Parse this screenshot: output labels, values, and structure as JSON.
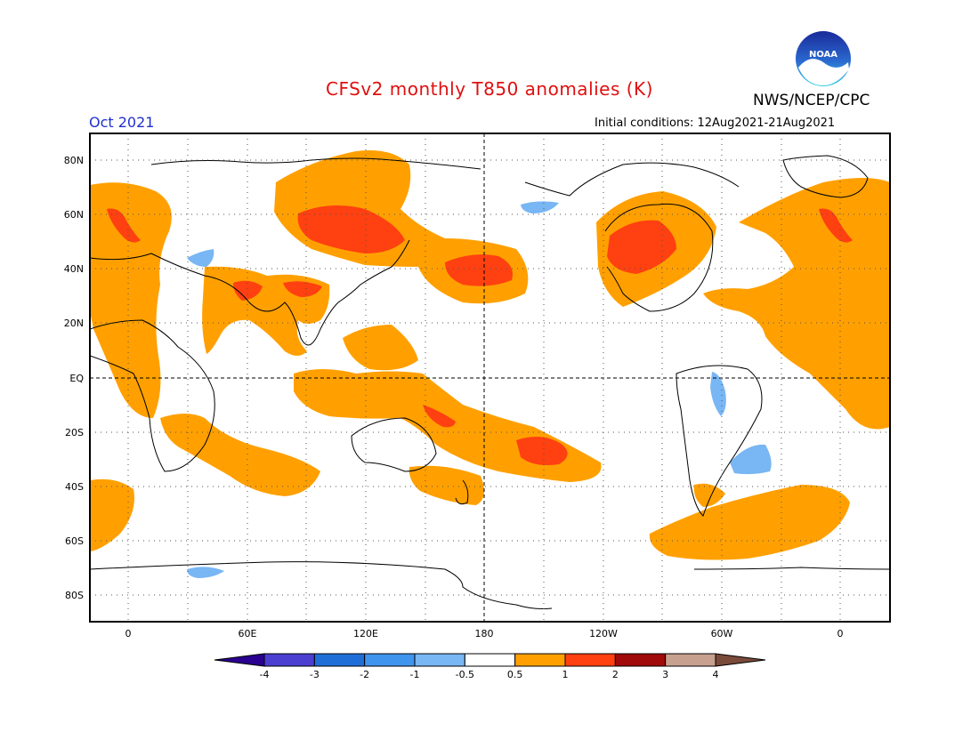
{
  "header": {
    "title": "CFSv2 monthly T850 anomalies (K)",
    "agency": "NWS/NCEP/CPC",
    "logo_text": "NOAA",
    "month": "Oct 2021",
    "initial_conditions": "Initial conditions: 12Aug2021-21Aug2021"
  },
  "axes": {
    "lat_labels": [
      "80N",
      "60N",
      "40N",
      "20N",
      "EQ",
      "20S",
      "40S",
      "60S",
      "80S"
    ],
    "lon_labels": [
      "0",
      "60E",
      "120E",
      "180",
      "120W",
      "60W",
      "0"
    ]
  },
  "colorbar": {
    "labels": [
      "-4",
      "-3",
      "-2",
      "-1",
      "-0.5",
      "0.5",
      "1",
      "2",
      "3",
      "4"
    ],
    "colors": [
      "#2a0090",
      "#4a3fd0",
      "#1f6ed8",
      "#3f94ee",
      "#78b6f4",
      "#ffffff",
      "#ffa000",
      "#ff4010",
      "#a00a0a",
      "#c8a090",
      "#7a4a3a"
    ]
  },
  "colors": {
    "warm": "#ffa000",
    "hot": "#ff4010",
    "cool": "#78b6f4",
    "title": "#e01010",
    "month": "#2030d0"
  }
}
